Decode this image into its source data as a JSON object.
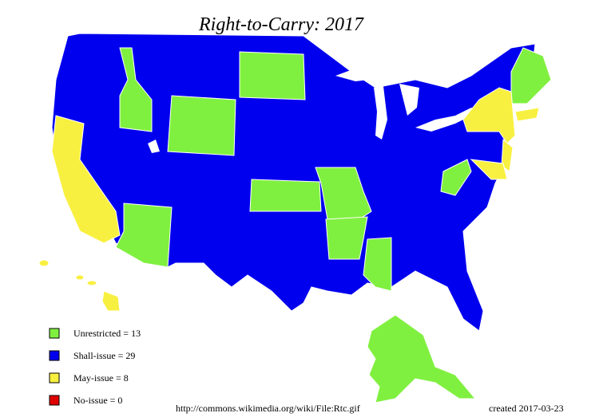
{
  "title": "Right-to-Carry: 2017",
  "legend": [
    {
      "label": "Unrestricted = 13",
      "color": "#80f040"
    },
    {
      "label": "Shall-issue = 29",
      "color": "#0000ee"
    },
    {
      "label": "May-issue = 8",
      "color": "#f8f040"
    },
    {
      "label": "No-issue = 0",
      "color": "#e00000"
    }
  ],
  "source": "http://commons.wikimedia.org/wiki/File:Rtc.gif",
  "created": "created 2017-03-23"
}
